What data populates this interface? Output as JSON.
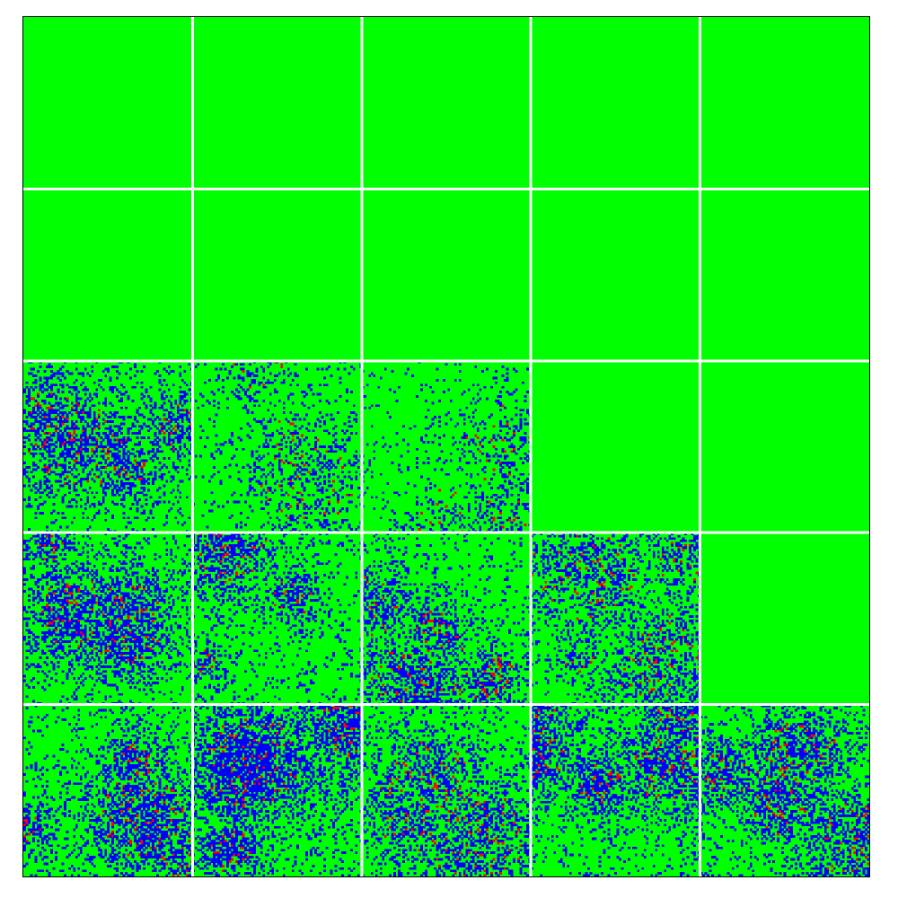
{
  "colors": {
    "background": "#00ff00",
    "blue_cell": "#0000ff",
    "red_cell": "#ff0000",
    "divider": "#ffffff",
    "border": "#000000"
  },
  "panels": {
    "rows": 5,
    "cols": 5,
    "cells_per_side": 75,
    "intensity": [
      [
        0,
        0,
        0,
        0,
        0
      ],
      [
        0,
        0,
        0,
        0,
        0
      ],
      [
        0.3,
        0.16,
        0.14,
        0,
        0
      ],
      [
        0.34,
        0.3,
        0.28,
        0.22,
        0
      ],
      [
        0.34,
        0.4,
        0.26,
        0.36,
        0.3
      ]
    ]
  }
}
